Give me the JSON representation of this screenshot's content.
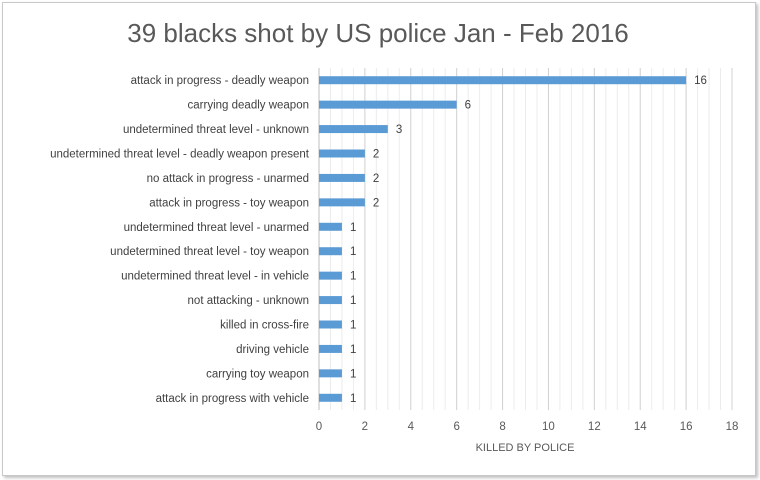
{
  "chart_data": {
    "type": "bar",
    "orientation": "horizontal",
    "title": "39 blacks shot by US police Jan - Feb 2016",
    "xlabel": "KILLED BY POLICE",
    "ylabel": "",
    "xlim": [
      0,
      18
    ],
    "xticks": [
      0,
      2,
      4,
      6,
      8,
      10,
      12,
      14,
      16,
      18
    ],
    "categories": [
      "attack in progress - deadly weapon",
      "carrying deadly weapon",
      "undetermined threat level - unknown",
      "undetermined threat level - deadly weapon present",
      "no attack in progress - unarmed",
      "attack in progress - toy weapon",
      "undetermined threat level - unarmed",
      "undetermined  threat level - toy weapon",
      "undetermined threat level - in vehicle",
      "not attacking - unknown",
      "killed in cross-fire",
      "driving vehicle",
      "carrying toy weapon",
      "attack in progress with vehicle"
    ],
    "values": [
      16,
      6,
      3,
      2,
      2,
      2,
      1,
      1,
      1,
      1,
      1,
      1,
      1,
      1
    ],
    "bar_color": "#5B9BD5",
    "grid": true,
    "legend": "none"
  }
}
